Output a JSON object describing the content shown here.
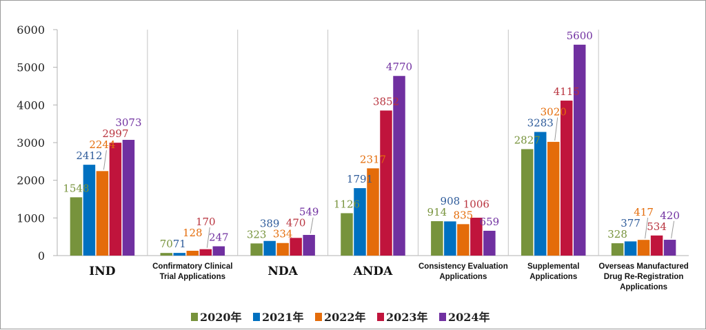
{
  "chart_data": {
    "type": "bar",
    "title": "",
    "xlabel": "",
    "ylabel": "",
    "ylim": [
      0,
      6000
    ],
    "yticks": [
      "0",
      "1000",
      "2000",
      "3000",
      "4000",
      "5000",
      "6000"
    ],
    "categories": [
      "IND",
      "Confirmatory Clinical Trial Applications",
      "NDA",
      "ANDA",
      "Consistency Evaluation Applications",
      "Supplemental Applications",
      "Overseas Manufactured Drug Re-Registration Applications"
    ],
    "category_lines": [
      [
        "IND"
      ],
      [
        "Confirmatory Clinical",
        "Trial Applications"
      ],
      [
        "NDA"
      ],
      [
        "ANDA"
      ],
      [
        "Consistency Evaluation",
        "Applications"
      ],
      [
        "Supplemental",
        "Applications"
      ],
      [
        "Overseas Manufactured",
        "Drug Re-Registration",
        "Applications"
      ]
    ],
    "series": [
      {
        "name": "2020年",
        "color": "#77933c",
        "values": [
          1548,
          70,
          323,
          1126,
          914,
          2827,
          328
        ]
      },
      {
        "name": "2021年",
        "color": "#0070c0",
        "values": [
          2412,
          71,
          389,
          1791,
          908,
          3283,
          377
        ]
      },
      {
        "name": "2022年",
        "color": "#e46c0a",
        "values": [
          2244,
          128,
          334,
          2317,
          835,
          3020,
          417
        ]
      },
      {
        "name": "2023年",
        "color": "#c0143c",
        "values": [
          2997,
          170,
          470,
          3852,
          1006,
          4115,
          534
        ]
      },
      {
        "name": "2024年",
        "color": "#7030a0",
        "values": [
          3073,
          247,
          549,
          4770,
          659,
          5600,
          420
        ]
      }
    ],
    "label_colors": [
      "#77933c",
      "#2e5b9a",
      "#e46c0a",
      "#b8333e",
      "#7030a0"
    ],
    "grid": false,
    "legend_position": "bottom"
  }
}
